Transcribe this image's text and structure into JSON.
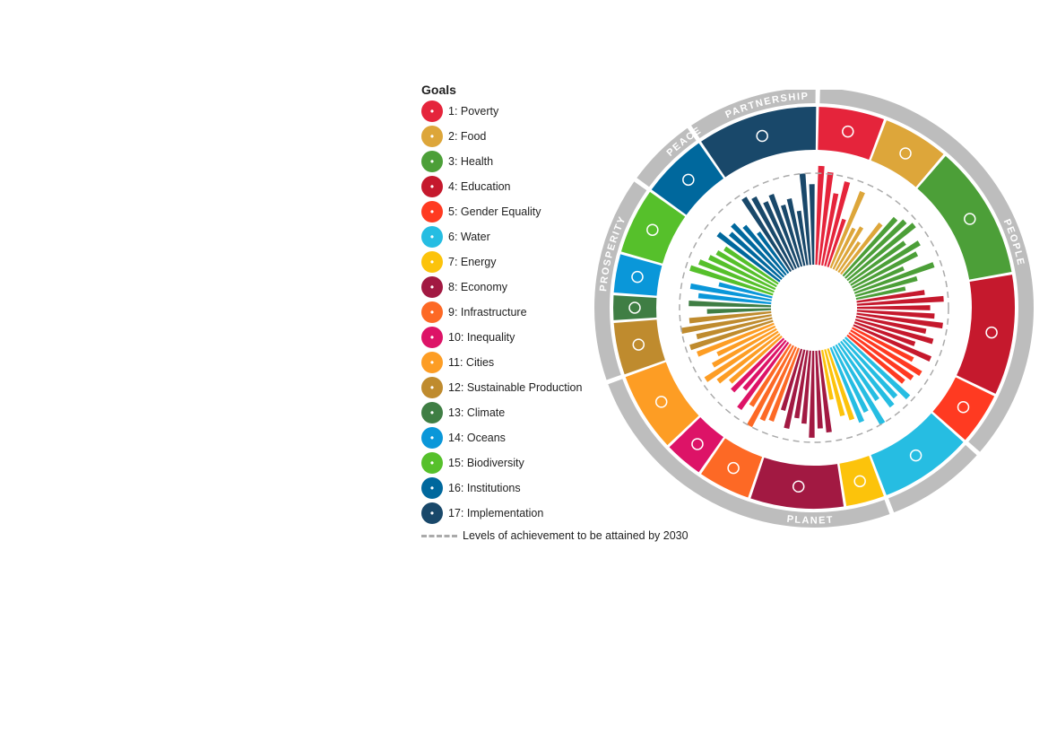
{
  "legend": {
    "title": "Goals",
    "goals": [
      {
        "label": "1: Poverty",
        "color": "#E5243B",
        "icon": "family-icon"
      },
      {
        "label": "2: Food",
        "color": "#DDA63A",
        "icon": "bowl-icon"
      },
      {
        "label": "3: Health",
        "color": "#4C9F38",
        "icon": "heartbeat-icon"
      },
      {
        "label": "4: Education",
        "color": "#C5192D",
        "icon": "book-icon"
      },
      {
        "label": "5: Gender Equality",
        "color": "#FF3A21",
        "icon": "gender-icon"
      },
      {
        "label": "6: Water",
        "color": "#26BDE2",
        "icon": "water-drop-icon"
      },
      {
        "label": "7: Energy",
        "color": "#FCC30B",
        "icon": "sun-icon"
      },
      {
        "label": "8: Economy",
        "color": "#A21942",
        "icon": "growth-chart-icon"
      },
      {
        "label": "9: Infrastructure",
        "color": "#FD6925",
        "icon": "cubes-icon"
      },
      {
        "label": "10: Inequality",
        "color": "#DD1367",
        "icon": "equal-icon"
      },
      {
        "label": "11: Cities",
        "color": "#FD9D24",
        "icon": "buildings-icon"
      },
      {
        "label": "12: Sustainable Production",
        "color": "#BF8B2E",
        "icon": "infinity-icon"
      },
      {
        "label": "13: Climate",
        "color": "#3F7E44",
        "icon": "eye-globe-icon"
      },
      {
        "label": "14: Oceans",
        "color": "#0A97D9",
        "icon": "fish-icon"
      },
      {
        "label": "15: Biodiversity",
        "color": "#56C02B",
        "icon": "tree-bird-icon"
      },
      {
        "label": "16: Institutions",
        "color": "#00689D",
        "icon": "dove-icon"
      },
      {
        "label": "17: Implementation",
        "color": "#19486A",
        "icon": "rings-icon"
      }
    ],
    "target_label": "Levels of achievement to be attained by 2030"
  },
  "ring": {
    "people": "PEOPLE",
    "planet": "PLANET",
    "prosperity": "PROSPERITY",
    "peace": "PEACE",
    "partnership": "PARTNERSHIP"
  },
  "chart_data": {
    "type": "bar",
    "subtype": "radial",
    "target_level": 1.0,
    "series": [
      {
        "goal": 1,
        "values": [
          1.08,
          1.02,
          0.8,
          0.95,
          0.55
        ]
      },
      {
        "goal": 2,
        "values": [
          0.9,
          0.5,
          0.55,
          0.4,
          0.7
        ]
      },
      {
        "goal": 3,
        "values": [
          0.85,
          0.9,
          0.95,
          0.75,
          0.88,
          0.8,
          0.6,
          0.92,
          0.7,
          0.55
        ]
      },
      {
        "goal": 4,
        "values": [
          0.75,
          0.95,
          0.8,
          0.85,
          0.95,
          0.78,
          0.88,
          0.7,
          0.92
        ]
      },
      {
        "goal": 5,
        "values": [
          0.75,
          0.9,
          0.85,
          0.8
        ]
      },
      {
        "goal": 6,
        "values": [
          0.95,
          0.85,
          0.9,
          0.75,
          1.0,
          0.8,
          0.88
        ]
      },
      {
        "goal": 7,
        "values": [
          0.82,
          0.75,
          0.55
        ]
      },
      {
        "goal": 8,
        "values": [
          0.9,
          0.85,
          0.95,
          0.8,
          0.75,
          0.88,
          0.7
        ]
      },
      {
        "goal": 9,
        "values": [
          0.85,
          0.88,
          1.0,
          0.8
        ]
      },
      {
        "goal": 10,
        "values": [
          0.9,
          0.7,
          0.8
        ]
      },
      {
        "goal": 11,
        "values": [
          0.75,
          0.85,
          0.95,
          0.8,
          0.7,
          0.9
        ]
      },
      {
        "goal": 12,
        "values": [
          0.95,
          0.85,
          1.0,
          0.9
        ]
      },
      {
        "goal": 13,
        "values": [
          0.7,
          0.9
        ]
      },
      {
        "goal": 14,
        "values": [
          0.8,
          0.9,
          0.6
        ]
      },
      {
        "goal": 15,
        "values": [
          0.95,
          0.88,
          0.8,
          0.75,
          0.7
        ]
      },
      {
        "goal": 16,
        "values": [
          0.85,
          0.75,
          0.8,
          0.7,
          0.55
        ]
      },
      {
        "goal": 17,
        "values": [
          0.95,
          0.9,
          0.8,
          0.85,
          0.7,
          0.75,
          0.6,
          1.0,
          0.88
        ]
      }
    ]
  }
}
